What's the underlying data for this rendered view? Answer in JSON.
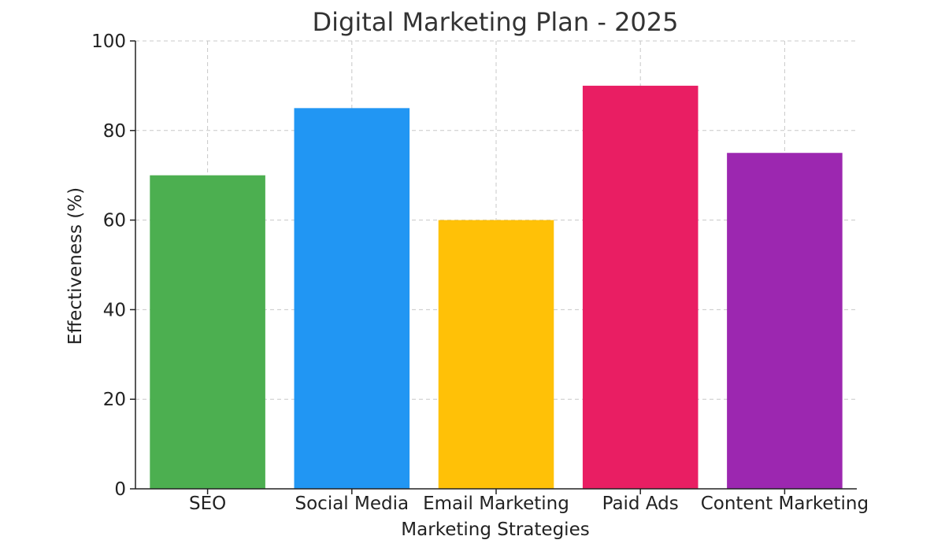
{
  "chart_data": {
    "type": "bar",
    "title": "Digital Marketing Plan - 2025",
    "xlabel": "Marketing Strategies",
    "ylabel": "Effectiveness (%)",
    "categories": [
      "SEO",
      "Social Media",
      "Email Marketing",
      "Paid Ads",
      "Content Marketing"
    ],
    "values": [
      70,
      85,
      60,
      90,
      75
    ],
    "colors": [
      "#4caf50",
      "#2196f3",
      "#ffc107",
      "#e91e63",
      "#9c27b0"
    ],
    "ylim": [
      0,
      100
    ],
    "yticks": [
      0,
      20,
      40,
      60,
      80,
      100
    ],
    "grid": true
  }
}
